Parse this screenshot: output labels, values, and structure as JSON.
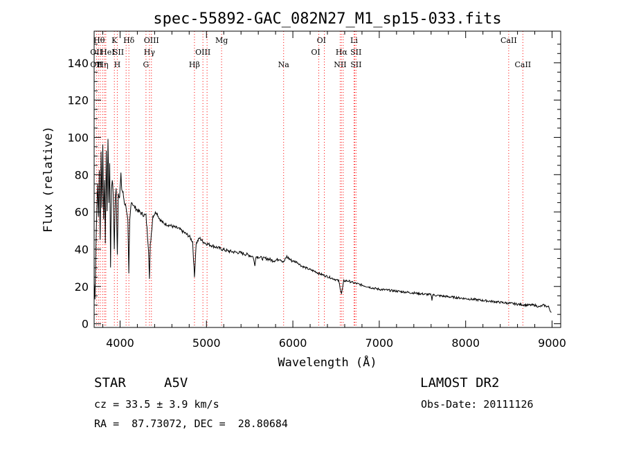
{
  "chart_data": {
    "type": "line",
    "title": "spec-55892-GAC_082N27_M1_sp15-033.fits",
    "xlabel": "Wavelength (Å)",
    "ylabel": "Flux (relative)",
    "xlim": [
      3700,
      9100
    ],
    "ylim": [
      -2,
      157
    ],
    "x_ticks": [
      4000,
      5000,
      6000,
      7000,
      8000,
      9000
    ],
    "y_ticks": [
      0,
      20,
      40,
      60,
      80,
      100,
      120,
      140
    ],
    "grid": false,
    "legend": "none",
    "series_color": "#000000",
    "line_marker_color": "#ff0000",
    "spectrum_points": [
      [
        3700,
        22
      ],
      [
        3710,
        14
      ],
      [
        3720,
        40
      ],
      [
        3730,
        60
      ],
      [
        3740,
        75
      ],
      [
        3750,
        58
      ],
      [
        3760,
        82
      ],
      [
        3770,
        45
      ],
      [
        3780,
        92
      ],
      [
        3790,
        62
      ],
      [
        3800,
        97
      ],
      [
        3810,
        55
      ],
      [
        3820,
        78
      ],
      [
        3830,
        42
      ],
      [
        3840,
        93
      ],
      [
        3850,
        60
      ],
      [
        3860,
        100
      ],
      [
        3870,
        65
      ],
      [
        3880,
        86
      ],
      [
        3890,
        31
      ],
      [
        3900,
        72
      ],
      [
        3910,
        78
      ],
      [
        3920,
        70
      ],
      [
        3933,
        40
      ],
      [
        3945,
        68
      ],
      [
        3955,
        72
      ],
      [
        3968,
        38
      ],
      [
        3980,
        70
      ],
      [
        3995,
        68
      ],
      [
        4010,
        80
      ],
      [
        4020,
        72
      ],
      [
        4035,
        70
      ],
      [
        4050,
        65
      ],
      [
        4070,
        63
      ],
      [
        4090,
        55
      ],
      [
        4101,
        26
      ],
      [
        4112,
        55
      ],
      [
        4130,
        66
      ],
      [
        4160,
        63
      ],
      [
        4200,
        61
      ],
      [
        4250,
        59
      ],
      [
        4300,
        58
      ],
      [
        4330,
        40
      ],
      [
        4340,
        24
      ],
      [
        4350,
        42
      ],
      [
        4380,
        58
      ],
      [
        4420,
        60
      ],
      [
        4460,
        56
      ],
      [
        4500,
        54
      ],
      [
        4560,
        53
      ],
      [
        4620,
        52
      ],
      [
        4680,
        51
      ],
      [
        4740,
        49
      ],
      [
        4800,
        47
      ],
      [
        4840,
        44
      ],
      [
        4861,
        25
      ],
      [
        4880,
        43
      ],
      [
        4920,
        46
      ],
      [
        4960,
        44
      ],
      [
        5000,
        43
      ],
      [
        5060,
        42
      ],
      [
        5120,
        41
      ],
      [
        5180,
        40
      ],
      [
        5250,
        39
      ],
      [
        5320,
        38.5
      ],
      [
        5400,
        38
      ],
      [
        5480,
        37
      ],
      [
        5540,
        36
      ],
      [
        5560,
        31
      ],
      [
        5570,
        36
      ],
      [
        5600,
        36
      ],
      [
        5650,
        35
      ],
      [
        5700,
        35
      ],
      [
        5760,
        34
      ],
      [
        5800,
        34
      ],
      [
        5850,
        35
      ],
      [
        5893,
        33
      ],
      [
        5930,
        36
      ],
      [
        5980,
        34
      ],
      [
        6050,
        33
      ],
      [
        6100,
        31
      ],
      [
        6150,
        30
      ],
      [
        6200,
        29
      ],
      [
        6260,
        28
      ],
      [
        6300,
        27
      ],
      [
        6360,
        26
      ],
      [
        6420,
        25
      ],
      [
        6480,
        24
      ],
      [
        6530,
        23
      ],
      [
        6563,
        16
      ],
      [
        6590,
        23
      ],
      [
        6640,
        23
      ],
      [
        6700,
        22
      ],
      [
        6780,
        21
      ],
      [
        6860,
        20
      ],
      [
        6940,
        19
      ],
      [
        7000,
        18.5
      ],
      [
        7100,
        18
      ],
      [
        7200,
        17.5
      ],
      [
        7300,
        17
      ],
      [
        7400,
        16.5
      ],
      [
        7500,
        16
      ],
      [
        7600,
        15.5
      ],
      [
        7610,
        13
      ],
      [
        7620,
        15.5
      ],
      [
        7700,
        15
      ],
      [
        7800,
        14.5
      ],
      [
        7900,
        14
      ],
      [
        8000,
        13.5
      ],
      [
        8100,
        13
      ],
      [
        8200,
        12.5
      ],
      [
        8300,
        12
      ],
      [
        8400,
        11.5
      ],
      [
        8500,
        11
      ],
      [
        8600,
        10.5
      ],
      [
        8700,
        10
      ],
      [
        8800,
        10
      ],
      [
        8850,
        9
      ],
      [
        8900,
        10
      ],
      [
        8960,
        9
      ],
      [
        8990,
        6
      ]
    ],
    "lines_blue": [
      {
        "name": "OII",
        "x": 3727
      },
      {
        "name": "Hθ",
        "x": 3750
      },
      {
        "name": "Hη",
        "x": 3771
      },
      {
        "name": "Hζ",
        "x": 3798
      },
      {
        "name": "HeI",
        "x": 3820
      },
      {
        "name": "Hε",
        "x": 3835
      },
      {
        "name": "K",
        "x": 3934
      },
      {
        "name": "H",
        "x": 3968
      },
      {
        "name": "SII",
        "x": 4070
      },
      {
        "name": "Hδ",
        "x": 4102
      },
      {
        "name": "G",
        "x": 4300
      },
      {
        "name": "Hγ",
        "x": 4340
      },
      {
        "name": "OIII",
        "x": 4363
      },
      {
        "name": "Hβ",
        "x": 4861
      },
      {
        "name": "OIII",
        "x": 4959
      },
      {
        "name": "OIII",
        "x": 5007
      },
      {
        "name": "Mg",
        "x": 5175
      },
      {
        "name": "Na",
        "x": 5893
      },
      {
        "name": "OI",
        "x": 6300
      },
      {
        "name": "OI",
        "x": 6364
      },
      {
        "name": "NII",
        "x": 6548
      },
      {
        "name": "Hα",
        "x": 6563
      },
      {
        "name": "NII",
        "x": 6583
      },
      {
        "name": "Li",
        "x": 6708
      },
      {
        "name": "SII",
        "x": 6716
      },
      {
        "name": "SII",
        "x": 6731
      },
      {
        "name": "CaII",
        "x": 8498
      },
      {
        "name": "CaII",
        "x": 8662
      }
    ],
    "line_labels": [
      {
        "text": "Hθ",
        "x": 3758,
        "row": 0
      },
      {
        "text": "K",
        "x": 3934,
        "row": 0
      },
      {
        "text": "Hδ",
        "x": 4102,
        "row": 0
      },
      {
        "text": "OIII",
        "x": 4363,
        "row": 0
      },
      {
        "text": "Mg",
        "x": 5175,
        "row": 0
      },
      {
        "text": "OI",
        "x": 6330,
        "row": 0
      },
      {
        "text": "Li",
        "x": 6708,
        "row": 0
      },
      {
        "text": "CaII",
        "x": 8498,
        "row": 0
      },
      {
        "text": "OII",
        "x": 3725,
        "row": 1
      },
      {
        "text": "HeI",
        "x": 3855,
        "row": 1
      },
      {
        "text": "SII",
        "x": 3980,
        "row": 1
      },
      {
        "text": "Hγ",
        "x": 4340,
        "row": 1
      },
      {
        "text": "OIII",
        "x": 4959,
        "row": 1
      },
      {
        "text": "OI",
        "x": 6264,
        "row": 1
      },
      {
        "text": "Hα",
        "x": 6563,
        "row": 1
      },
      {
        "text": "SII",
        "x": 6730,
        "row": 1
      },
      {
        "text": "OII",
        "x": 3725,
        "row": 2
      },
      {
        "text": "Hη",
        "x": 3800,
        "row": 2
      },
      {
        "text": "H",
        "x": 3968,
        "row": 2
      },
      {
        "text": "G",
        "x": 4300,
        "row": 2
      },
      {
        "text": "Hβ",
        "x": 4861,
        "row": 2
      },
      {
        "text": "Na",
        "x": 5893,
        "row": 2
      },
      {
        "text": "NII",
        "x": 6548,
        "row": 2
      },
      {
        "text": "SII",
        "x": 6731,
        "row": 2
      },
      {
        "text": "CaII",
        "x": 8662,
        "row": 2
      }
    ]
  },
  "info": {
    "object_class": "STAR",
    "subclass": "A5V",
    "survey": "LAMOST DR2",
    "cz": "cz = 33.5 ± 3.9 km/s",
    "obs_date": "Obs-Date: 20111126",
    "coords": "RA =  87.73072, DEC =  28.80684"
  }
}
